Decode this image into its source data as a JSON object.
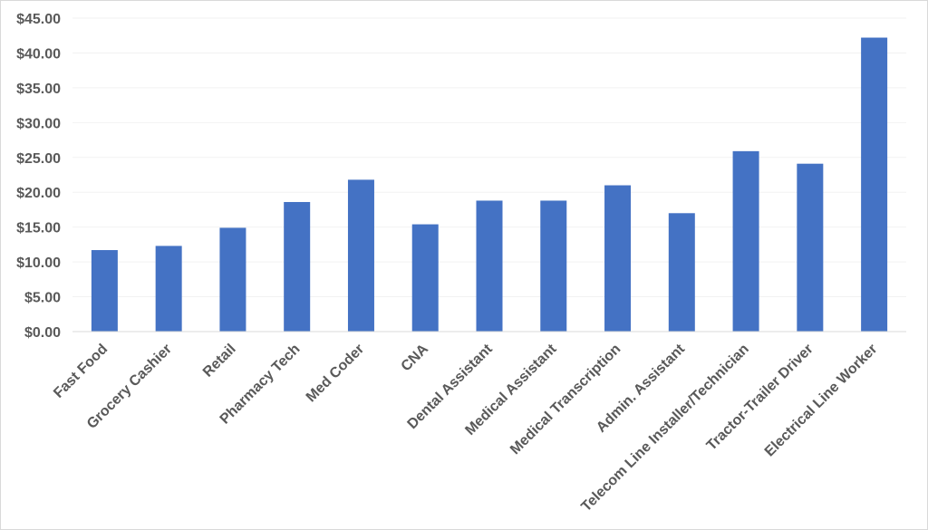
{
  "chart_data": {
    "type": "bar",
    "title": "",
    "xlabel": "",
    "ylabel": "",
    "categories": [
      "Fast Food",
      "Grocery Cashier",
      "Retail",
      "Pharmacy Tech",
      "Med Coder",
      "CNA",
      "Dental Assistant",
      "Medical Assistant",
      "Medical Transcription",
      "Admin. Assistant",
      "Telecom Line Installer/Technician",
      "Tractor-Trailer Driver",
      "Electrical Line Worker"
    ],
    "values": [
      11.7,
      12.3,
      14.9,
      18.6,
      21.8,
      15.4,
      18.8,
      18.8,
      21.0,
      17.0,
      25.9,
      24.1,
      42.2
    ],
    "ylim": [
      0,
      45
    ],
    "yticks": [
      0,
      5,
      10,
      15,
      20,
      25,
      30,
      35,
      40,
      45
    ],
    "ytick_labels": [
      "$0.00",
      "$5.00",
      "$10.00",
      "$15.00",
      "$20.00",
      "$25.00",
      "$30.00",
      "$35.00",
      "$40.00",
      "$45.00"
    ],
    "grid": true,
    "legend": "none",
    "colors": {
      "bar": "#4472c4",
      "axis": "#d9d9d9",
      "grid": "#f2f2f2",
      "text": "#595959"
    }
  }
}
